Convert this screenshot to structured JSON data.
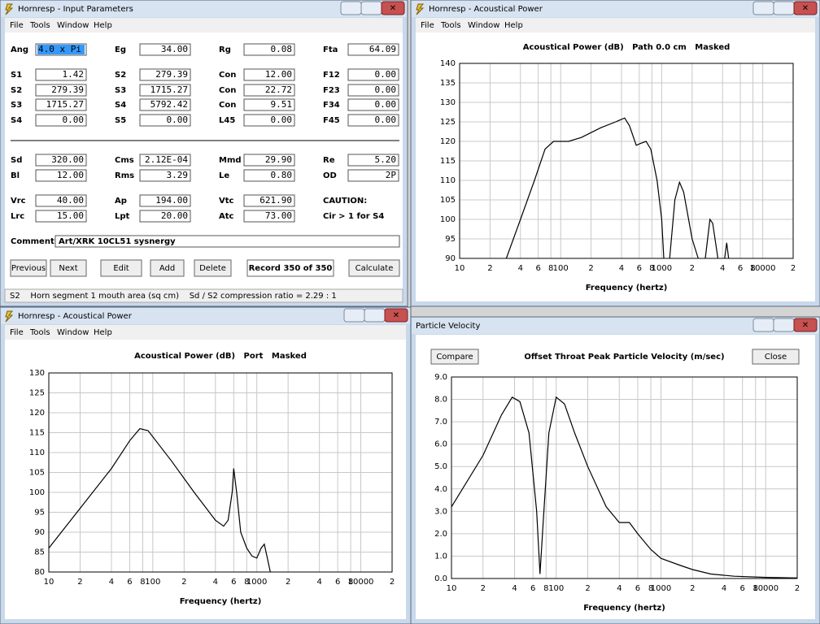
{
  "input_window": {
    "title": "Hornresp - Input Parameters",
    "menu": [
      "File",
      "Tools",
      "Window",
      "Help"
    ],
    "params": [
      [
        {
          "label": "Ang",
          "value": "4.0 x Pi"
        },
        {
          "label": "Eg",
          "value": "34.00"
        },
        {
          "label": "Rg",
          "value": "0.08"
        },
        {
          "label": "Fta",
          "value": "64.09"
        }
      ],
      [
        {
          "label": "S1",
          "value": "1.42"
        },
        {
          "label": "S2",
          "value": "279.39"
        },
        {
          "label": "Con",
          "value": "12.00"
        },
        {
          "label": "F12",
          "value": "0.00"
        }
      ],
      [
        {
          "label": "S2",
          "value": "279.39"
        },
        {
          "label": "S3",
          "value": "1715.27"
        },
        {
          "label": "Con",
          "value": "22.72"
        },
        {
          "label": "F23",
          "value": "0.00"
        }
      ],
      [
        {
          "label": "S3",
          "value": "1715.27"
        },
        {
          "label": "S4",
          "value": "5792.42"
        },
        {
          "label": "Con",
          "value": "9.51"
        },
        {
          "label": "F34",
          "value": "0.00"
        }
      ],
      [
        {
          "label": "S4",
          "value": "0.00"
        },
        {
          "label": "S5",
          "value": "0.00"
        },
        {
          "label": "L45",
          "value": "0.00"
        },
        {
          "label": "F45",
          "value": "0.00"
        }
      ],
      [
        {
          "label": "Sd",
          "value": "320.00"
        },
        {
          "label": "Cms",
          "value": "2.12E-04"
        },
        {
          "label": "Mmd",
          "value": "29.90"
        },
        {
          "label": "Re",
          "value": "5.20"
        }
      ],
      [
        {
          "label": "Bl",
          "value": "12.00"
        },
        {
          "label": "Rms",
          "value": "3.29"
        },
        {
          "label": "Le",
          "value": "0.80"
        },
        {
          "label": "OD",
          "value": "2P"
        }
      ],
      [
        {
          "label": "Vrc",
          "value": "40.00"
        },
        {
          "label": "Ap",
          "value": "194.00"
        },
        {
          "label": "Vtc",
          "value": "621.90"
        }
      ],
      [
        {
          "label": "Lrc",
          "value": "15.00"
        },
        {
          "label": "Lpt",
          "value": "20.00"
        },
        {
          "label": "Atc",
          "value": "73.00"
        }
      ]
    ],
    "caution": [
      "CAUTION:",
      "Cir > 1 for S4"
    ],
    "comment_label": "Comment",
    "comment": "Art/XRK 10CL51 sysnergy",
    "buttons": [
      "Previous",
      "Next",
      "Edit",
      "Add",
      "Delete",
      "Record 350 of 350",
      "Calculate"
    ],
    "status": "S2    Horn segment 1 mouth area (sq cm)    Sd / S2 compression ratio = 2.29 : 1"
  },
  "power_window_1": {
    "title": "Hornresp - Acoustical Power",
    "menu": [
      "File",
      "Tools",
      "Window",
      "Help"
    ]
  },
  "power_window_2": {
    "title": "Hornresp - Acoustical Power",
    "menu": [
      "File",
      "Tools",
      "Window",
      "Help"
    ]
  },
  "velocity_window": {
    "title": "Particle Velocity",
    "buttons": [
      "Compare",
      "Close"
    ]
  },
  "chart_data": [
    {
      "type": "line",
      "title": "Acoustical Power (dB)   Path 0.0 cm   Masked",
      "xlabel": "Frequency (hertz)",
      "xscale": "log",
      "grid": true,
      "color": "#000000",
      "x": [
        29,
        40,
        55,
        70,
        85,
        120,
        160,
        250,
        350,
        430,
        480,
        560,
        620,
        700,
        780,
        900,
        1000,
        1050,
        1120,
        1200,
        1350,
        1500,
        1650,
        2000,
        2300,
        2500,
        2700,
        3000,
        3200,
        3600,
        3900,
        4200,
        4400,
        4600
      ],
      "values": [
        90,
        100,
        110,
        118,
        120,
        120,
        121,
        123.5,
        125,
        126,
        124,
        119,
        119.5,
        120,
        118,
        110,
        100,
        90,
        null,
        90,
        105,
        109.5,
        107,
        95,
        90,
        null,
        90,
        100,
        99,
        90,
        null,
        90,
        94,
        90
      ],
      "xlim": [
        10,
        20000
      ],
      "ylim": [
        90,
        140
      ],
      "xticks": [
        10,
        {
          "value": 20,
          "label": "2"
        },
        {
          "value": 40,
          "label": "4"
        },
        {
          "value": 60,
          "label": "6"
        },
        {
          "value": 80,
          "label": "8"
        },
        100,
        {
          "value": 200,
          "label": "2"
        },
        {
          "value": 400,
          "label": "4"
        },
        {
          "value": 600,
          "label": "6"
        },
        {
          "value": 800,
          "label": "8"
        },
        1000,
        {
          "value": 2000,
          "label": "2"
        },
        {
          "value": 4000,
          "label": "4"
        },
        {
          "value": 6000,
          "label": "6"
        },
        {
          "value": 8000,
          "label": "8"
        },
        10000,
        {
          "value": 20000,
          "label": "2"
        }
      ],
      "yticks": [
        90,
        95,
        100,
        105,
        110,
        115,
        120,
        125,
        130,
        135,
        140
      ]
    },
    {
      "type": "line",
      "title": "Acoustical Power (dB)   Port   Masked",
      "xlabel": "Frequency (hertz)",
      "xscale": "log",
      "grid": true,
      "color": "#000000",
      "x": [
        10,
        20,
        40,
        60,
        75,
        90,
        150,
        250,
        400,
        480,
        530,
        580,
        600,
        640,
        700,
        800,
        900,
        1000,
        1100,
        1180,
        1250,
        1350
      ],
      "values": [
        86,
        96,
        106,
        113,
        116,
        115.5,
        108,
        100,
        93,
        91.5,
        93,
        100,
        106,
        100,
        90,
        86,
        84,
        83.5,
        86,
        87,
        84,
        80
      ],
      "xlim": [
        10,
        20000
      ],
      "ylim": [
        80,
        130
      ],
      "xticks": [
        10,
        {
          "value": 20,
          "label": "2"
        },
        {
          "value": 40,
          "label": "4"
        },
        {
          "value": 60,
          "label": "6"
        },
        {
          "value": 80,
          "label": "8"
        },
        100,
        {
          "value": 200,
          "label": "2"
        },
        {
          "value": 400,
          "label": "4"
        },
        {
          "value": 600,
          "label": "6"
        },
        {
          "value": 800,
          "label": "8"
        },
        1000,
        {
          "value": 2000,
          "label": "2"
        },
        {
          "value": 4000,
          "label": "4"
        },
        {
          "value": 6000,
          "label": "6"
        },
        {
          "value": 8000,
          "label": "8"
        },
        10000,
        {
          "value": 20000,
          "label": "2"
        }
      ],
      "yticks": [
        80,
        85,
        90,
        95,
        100,
        105,
        110,
        115,
        120,
        125,
        130
      ]
    },
    {
      "type": "line",
      "title": "Offset Throat Peak Particle Velocity (m/sec)",
      "xlabel": "Frequency (hertz)",
      "xscale": "log",
      "grid": true,
      "color": "#000000",
      "x": [
        10,
        20,
        30,
        38,
        45,
        55,
        65,
        70,
        75,
        85,
        100,
        120,
        150,
        200,
        300,
        400,
        500,
        600,
        800,
        1000,
        1500,
        2000,
        3000,
        5000,
        10000,
        20000
      ],
      "values": [
        3.2,
        5.5,
        7.3,
        8.1,
        7.9,
        6.5,
        3,
        0.2,
        2.5,
        6.5,
        8.1,
        7.8,
        6.5,
        5,
        3.2,
        2.5,
        2.5,
        2,
        1.3,
        0.9,
        0.6,
        0.4,
        0.2,
        0.1,
        0.05,
        0.02
      ],
      "xlim": [
        10,
        20000
      ],
      "ylim": [
        0,
        9
      ],
      "xticks": [
        10,
        {
          "value": 20,
          "label": "2"
        },
        {
          "value": 40,
          "label": "4"
        },
        {
          "value": 60,
          "label": "6"
        },
        {
          "value": 80,
          "label": "8"
        },
        100,
        {
          "value": 200,
          "label": "2"
        },
        {
          "value": 400,
          "label": "4"
        },
        {
          "value": 600,
          "label": "6"
        },
        {
          "value": 800,
          "label": "8"
        },
        1000,
        {
          "value": 2000,
          "label": "2"
        },
        {
          "value": 4000,
          "label": "4"
        },
        {
          "value": 6000,
          "label": "6"
        },
        {
          "value": 8000,
          "label": "8"
        },
        10000,
        {
          "value": 20000,
          "label": "2"
        }
      ],
      "yticks": [
        {
          "value": 0,
          "label": "0.0"
        },
        {
          "value": 1,
          "label": "1.0"
        },
        {
          "value": 2,
          "label": "2.0"
        },
        {
          "value": 3,
          "label": "3.0"
        },
        {
          "value": 4,
          "label": "4.0"
        },
        {
          "value": 5,
          "label": "5.0"
        },
        {
          "value": 6,
          "label": "6.0"
        },
        {
          "value": 7,
          "label": "7.0"
        },
        {
          "value": 8,
          "label": "8.0"
        },
        {
          "value": 9,
          "label": "9.0"
        }
      ]
    }
  ]
}
